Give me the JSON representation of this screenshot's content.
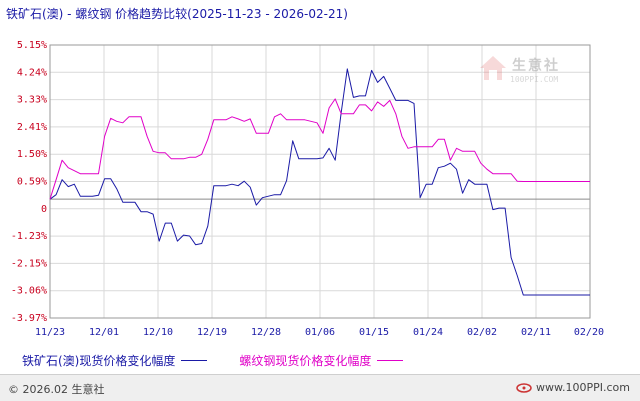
{
  "title": "铁矿石(澳) - 螺纹钢 价格趋势比较(2025-11-23 - 2026-02-21)",
  "watermark": {
    "brand": "生意社",
    "url": "100PPI.COM"
  },
  "footer": {
    "copyright": "© 2026.02 生意社",
    "site": "www.100PPI.com"
  },
  "colors": {
    "iron": "#1a1aa6",
    "rebar": "#e000c8",
    "tick_y": "#c8001e",
    "grid": "#d9d9d9",
    "border": "#9a9a9a"
  },
  "chart_data": {
    "type": "line",
    "title": "铁矿石(澳) - 螺纹钢 价格趋势比较(2025-11-23 - 2026-02-21)",
    "xlabel": "",
    "ylabel": "",
    "x_ticks": [
      "11/23",
      "12/01",
      "12/10",
      "12/19",
      "12/28",
      "01/06",
      "01/15",
      "01/24",
      "02/02",
      "02/11",
      "02/20"
    ],
    "y_ticks": [
      "5.15%",
      "4.24%",
      "3.33%",
      "2.41%",
      "1.50%",
      "0.59%",
      "0",
      "-1.23%",
      "-2.15%",
      "-3.06%",
      "-3.97%"
    ],
    "ylim": [
      -3.97,
      5.15
    ],
    "xlim": [
      0,
      89
    ],
    "grid": true,
    "legend_position": "bottom",
    "series": [
      {
        "name": "铁矿石(澳)现货价格变化幅度",
        "color": "#1a1aa6",
        "points": [
          [
            0,
            0
          ],
          [
            1,
            0.15
          ],
          [
            2,
            0.65
          ],
          [
            3,
            0.42
          ],
          [
            4,
            0.5
          ],
          [
            5,
            0.1
          ],
          [
            6,
            0.1
          ],
          [
            7,
            0.1
          ],
          [
            8,
            0.13
          ],
          [
            9,
            0.68
          ],
          [
            10,
            0.68
          ],
          [
            11,
            0.35
          ],
          [
            12,
            -0.1
          ],
          [
            13,
            -0.1
          ],
          [
            14,
            -0.1
          ],
          [
            15,
            -0.42
          ],
          [
            16,
            -0.42
          ],
          [
            17,
            -0.5
          ],
          [
            18,
            -1.4
          ],
          [
            19,
            -0.8
          ],
          [
            20,
            -0.8
          ],
          [
            21,
            -1.4
          ],
          [
            22,
            -1.2
          ],
          [
            23,
            -1.23
          ],
          [
            24,
            -1.52
          ],
          [
            25,
            -1.48
          ],
          [
            26,
            -0.9
          ],
          [
            27,
            0.45
          ],
          [
            28,
            0.45
          ],
          [
            29,
            0.45
          ],
          [
            30,
            0.5
          ],
          [
            31,
            0.45
          ],
          [
            32,
            0.6
          ],
          [
            33,
            0.4
          ],
          [
            34,
            -0.2
          ],
          [
            35,
            0.05
          ],
          [
            36,
            0.1
          ],
          [
            37,
            0.15
          ],
          [
            38,
            0.15
          ],
          [
            39,
            0.62
          ],
          [
            40,
            1.95
          ],
          [
            41,
            1.35
          ],
          [
            42,
            1.35
          ],
          [
            43,
            1.35
          ],
          [
            44,
            1.35
          ],
          [
            45,
            1.38
          ],
          [
            46,
            1.7
          ],
          [
            47,
            1.3
          ],
          [
            48,
            2.9
          ],
          [
            49,
            4.35
          ],
          [
            50,
            3.4
          ],
          [
            51,
            3.45
          ],
          [
            52,
            3.45
          ],
          [
            53,
            4.3
          ],
          [
            54,
            3.9
          ],
          [
            55,
            4.1
          ],
          [
            56,
            3.7
          ],
          [
            57,
            3.3
          ],
          [
            58,
            3.3
          ],
          [
            59,
            3.3
          ],
          [
            60,
            3.2
          ],
          [
            61,
            0.05
          ],
          [
            62,
            0.5
          ],
          [
            63,
            0.5
          ],
          [
            64,
            1.05
          ],
          [
            65,
            1.1
          ],
          [
            66,
            1.2
          ],
          [
            67,
            1.0
          ],
          [
            68,
            0.2
          ],
          [
            69,
            0.65
          ],
          [
            70,
            0.5
          ],
          [
            71,
            0.5
          ],
          [
            72,
            0.5
          ],
          [
            73,
            -0.35
          ],
          [
            74,
            -0.3
          ],
          [
            75,
            -0.3
          ],
          [
            76,
            -1.95
          ],
          [
            77,
            -2.55
          ],
          [
            78,
            -3.2
          ],
          [
            79,
            -3.2
          ],
          [
            80,
            -3.2
          ],
          [
            81,
            -3.2
          ],
          [
            82,
            -3.2
          ],
          [
            83,
            -3.2
          ],
          [
            84,
            -3.2
          ],
          [
            85,
            -3.2
          ],
          [
            86,
            -3.2
          ],
          [
            87,
            -3.2
          ],
          [
            88,
            -3.2
          ],
          [
            89,
            -3.2
          ]
        ]
      },
      {
        "name": "螺纹钢现货价格变化幅度",
        "color": "#e000c8",
        "points": [
          [
            0,
            0
          ],
          [
            1,
            0.65
          ],
          [
            2,
            1.3
          ],
          [
            3,
            1.05
          ],
          [
            4,
            0.95
          ],
          [
            5,
            0.85
          ],
          [
            6,
            0.85
          ],
          [
            7,
            0.85
          ],
          [
            8,
            0.85
          ],
          [
            9,
            2.1
          ],
          [
            10,
            2.7
          ],
          [
            11,
            2.6
          ],
          [
            12,
            2.55
          ],
          [
            13,
            2.75
          ],
          [
            14,
            2.75
          ],
          [
            15,
            2.75
          ],
          [
            16,
            2.1
          ],
          [
            17,
            1.6
          ],
          [
            18,
            1.55
          ],
          [
            19,
            1.55
          ],
          [
            20,
            1.35
          ],
          [
            21,
            1.35
          ],
          [
            22,
            1.35
          ],
          [
            23,
            1.4
          ],
          [
            24,
            1.4
          ],
          [
            25,
            1.5
          ],
          [
            26,
            2.0
          ],
          [
            27,
            2.65
          ],
          [
            28,
            2.65
          ],
          [
            29,
            2.65
          ],
          [
            30,
            2.75
          ],
          [
            31,
            2.68
          ],
          [
            32,
            2.6
          ],
          [
            33,
            2.68
          ],
          [
            34,
            2.2
          ],
          [
            35,
            2.2
          ],
          [
            36,
            2.2
          ],
          [
            37,
            2.75
          ],
          [
            38,
            2.85
          ],
          [
            39,
            2.65
          ],
          [
            40,
            2.65
          ],
          [
            41,
            2.65
          ],
          [
            42,
            2.65
          ],
          [
            43,
            2.6
          ],
          [
            44,
            2.55
          ],
          [
            45,
            2.2
          ],
          [
            46,
            3.05
          ],
          [
            47,
            3.35
          ],
          [
            48,
            2.85
          ],
          [
            49,
            2.85
          ],
          [
            50,
            2.85
          ],
          [
            51,
            3.15
          ],
          [
            52,
            3.15
          ],
          [
            53,
            2.95
          ],
          [
            54,
            3.25
          ],
          [
            55,
            3.1
          ],
          [
            56,
            3.3
          ],
          [
            57,
            2.85
          ],
          [
            58,
            2.1
          ],
          [
            59,
            1.7
          ],
          [
            60,
            1.75
          ],
          [
            61,
            1.75
          ],
          [
            62,
            1.75
          ],
          [
            63,
            1.75
          ],
          [
            64,
            2.0
          ],
          [
            65,
            2.0
          ],
          [
            66,
            1.3
          ],
          [
            67,
            1.7
          ],
          [
            68,
            1.6
          ],
          [
            69,
            1.6
          ],
          [
            70,
            1.6
          ],
          [
            71,
            1.2
          ],
          [
            72,
            1.0
          ],
          [
            73,
            0.85
          ],
          [
            74,
            0.85
          ],
          [
            75,
            0.85
          ],
          [
            76,
            0.85
          ],
          [
            77,
            0.6
          ],
          [
            78,
            0.59
          ],
          [
            79,
            0.59
          ],
          [
            80,
            0.59
          ],
          [
            81,
            0.59
          ],
          [
            82,
            0.59
          ],
          [
            83,
            0.59
          ],
          [
            84,
            0.59
          ],
          [
            85,
            0.59
          ],
          [
            86,
            0.59
          ],
          [
            87,
            0.59
          ],
          [
            88,
            0.59
          ],
          [
            89,
            0.59
          ]
        ]
      }
    ]
  }
}
